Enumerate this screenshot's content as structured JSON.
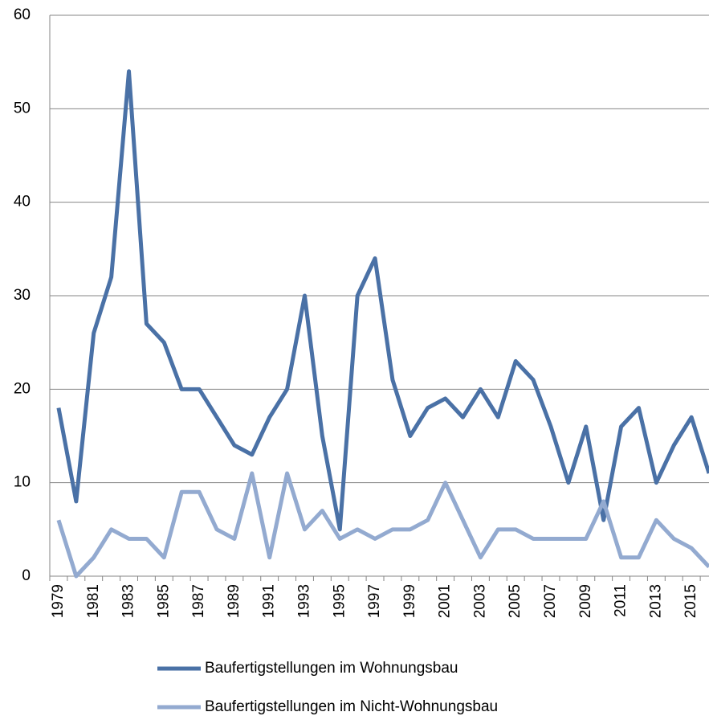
{
  "chart_data": {
    "type": "line",
    "categories": [
      "1979",
      null,
      "1981",
      null,
      "1983",
      null,
      "1985",
      null,
      "1987",
      null,
      "1989",
      null,
      "1991",
      null,
      "1993",
      null,
      "1995",
      null,
      "1997",
      null,
      "1999",
      null,
      "2001",
      null,
      "2003",
      null,
      "2005",
      null,
      "2007",
      null,
      "2009",
      null,
      "2011",
      null,
      "2013",
      null,
      "2015",
      null
    ],
    "series": [
      {
        "name": "Baufertigstellungen im Wohnungsbau",
        "color": "#4a71a6",
        "values": [
          18,
          8,
          26,
          32,
          54,
          27,
          25,
          20,
          20,
          17,
          14,
          13,
          17,
          20,
          30,
          15,
          5,
          30,
          34,
          21,
          15,
          18,
          19,
          17,
          20,
          17,
          23,
          21,
          16,
          10,
          16,
          6,
          16,
          18,
          10,
          14,
          17,
          11
        ]
      },
      {
        "name": "Baufertigstellungen im Nicht-Wohnungsbau",
        "color": "#93aad0",
        "values": [
          6,
          0,
          2,
          5,
          4,
          4,
          2,
          9,
          9,
          5,
          4,
          11,
          2,
          11,
          5,
          7,
          4,
          5,
          4,
          5,
          5,
          6,
          10,
          6,
          2,
          5,
          5,
          4,
          4,
          4,
          4,
          8,
          2,
          2,
          6,
          4,
          3,
          1
        ]
      }
    ],
    "ylim": [
      0,
      60
    ],
    "yticks": [
      0,
      10,
      20,
      30,
      40,
      50,
      60
    ],
    "grid": true,
    "legend": "bottom"
  }
}
